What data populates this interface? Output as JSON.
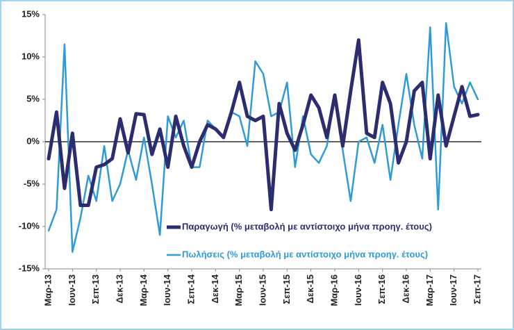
{
  "chart_data": {
    "type": "line",
    "categories": [
      "Μαρ-13",
      null,
      null,
      "Ιουν-13",
      null,
      null,
      "Σεπ-13",
      null,
      null,
      "Δεκ-13",
      null,
      null,
      "Μαρ-14",
      null,
      null,
      "Ιουν-14",
      null,
      null,
      "Σεπ-14",
      null,
      null,
      "Δεκ-14",
      null,
      null,
      "Μαρ-15",
      null,
      null,
      "Ιουν-15",
      null,
      null,
      "Σεπ-15",
      null,
      null,
      "Δεκ-15",
      null,
      null,
      "Μαρ-16",
      null,
      null,
      "Ιουν-16",
      null,
      null,
      "Σεπ-16",
      null,
      null,
      "Δεκ-16",
      null,
      null,
      "Μαρ-17",
      null,
      null,
      "Ιουν-17",
      null,
      null,
      "Σεπ-17"
    ],
    "series": [
      {
        "name": "Παραγωγή (% μεταβολή με αντίστοιχο μήνα προηγ. έτους)",
        "color": "#2b2d6e",
        "width": 5,
        "values": [
          -2,
          3.5,
          -5.5,
          1,
          -7.5,
          -7.5,
          -3,
          -2.7,
          -2,
          2.7,
          -1.3,
          3.3,
          3.2,
          -1.5,
          1.5,
          -3,
          3,
          -0.5,
          -3,
          0,
          2,
          1.5,
          0.5,
          3.5,
          7,
          3,
          2.5,
          3,
          -8,
          4.5,
          1,
          -1,
          2,
          5.5,
          4,
          0.5,
          5.5,
          -0.5,
          6,
          12,
          1,
          0.5,
          7,
          4.5,
          -2.5,
          0,
          6,
          7,
          -2,
          5.5,
          -0.5,
          3,
          6.5,
          3,
          3.2
        ]
      },
      {
        "name": "Πωλήσεις (% μεταβολή με αντίστοιχο μήνα προηγ. έτους)",
        "color": "#2e9bd6",
        "width": 2.5,
        "values": [
          -10.5,
          -8,
          11.5,
          -13,
          -9,
          -4,
          -7,
          -0.5,
          -7,
          -5,
          -1,
          -4.5,
          0.5,
          -5,
          -11,
          3,
          0.5,
          2.5,
          -3,
          -3,
          2.5,
          1.5,
          0.5,
          3.5,
          3,
          -0.5,
          9.5,
          8,
          3,
          3.5,
          7,
          -3,
          3,
          -1.5,
          -2.5,
          -0.5,
          5.5,
          -1,
          -7,
          0,
          0.5,
          -2.5,
          2,
          -4.5,
          2,
          8,
          2,
          -2,
          13.5,
          -8,
          14,
          6.5,
          4.5,
          7,
          5
        ]
      }
    ],
    "ylim": [
      -15,
      15
    ],
    "yticks": [
      {
        "value": -15,
        "label": "-15%"
      },
      {
        "value": -10,
        "label": "-10%"
      },
      {
        "value": -5,
        "label": "-5%"
      },
      {
        "value": 0,
        "label": "0%"
      },
      {
        "value": 5,
        "label": "5%"
      },
      {
        "value": 10,
        "label": "10%"
      },
      {
        "value": 15,
        "label": "15%"
      }
    ]
  }
}
